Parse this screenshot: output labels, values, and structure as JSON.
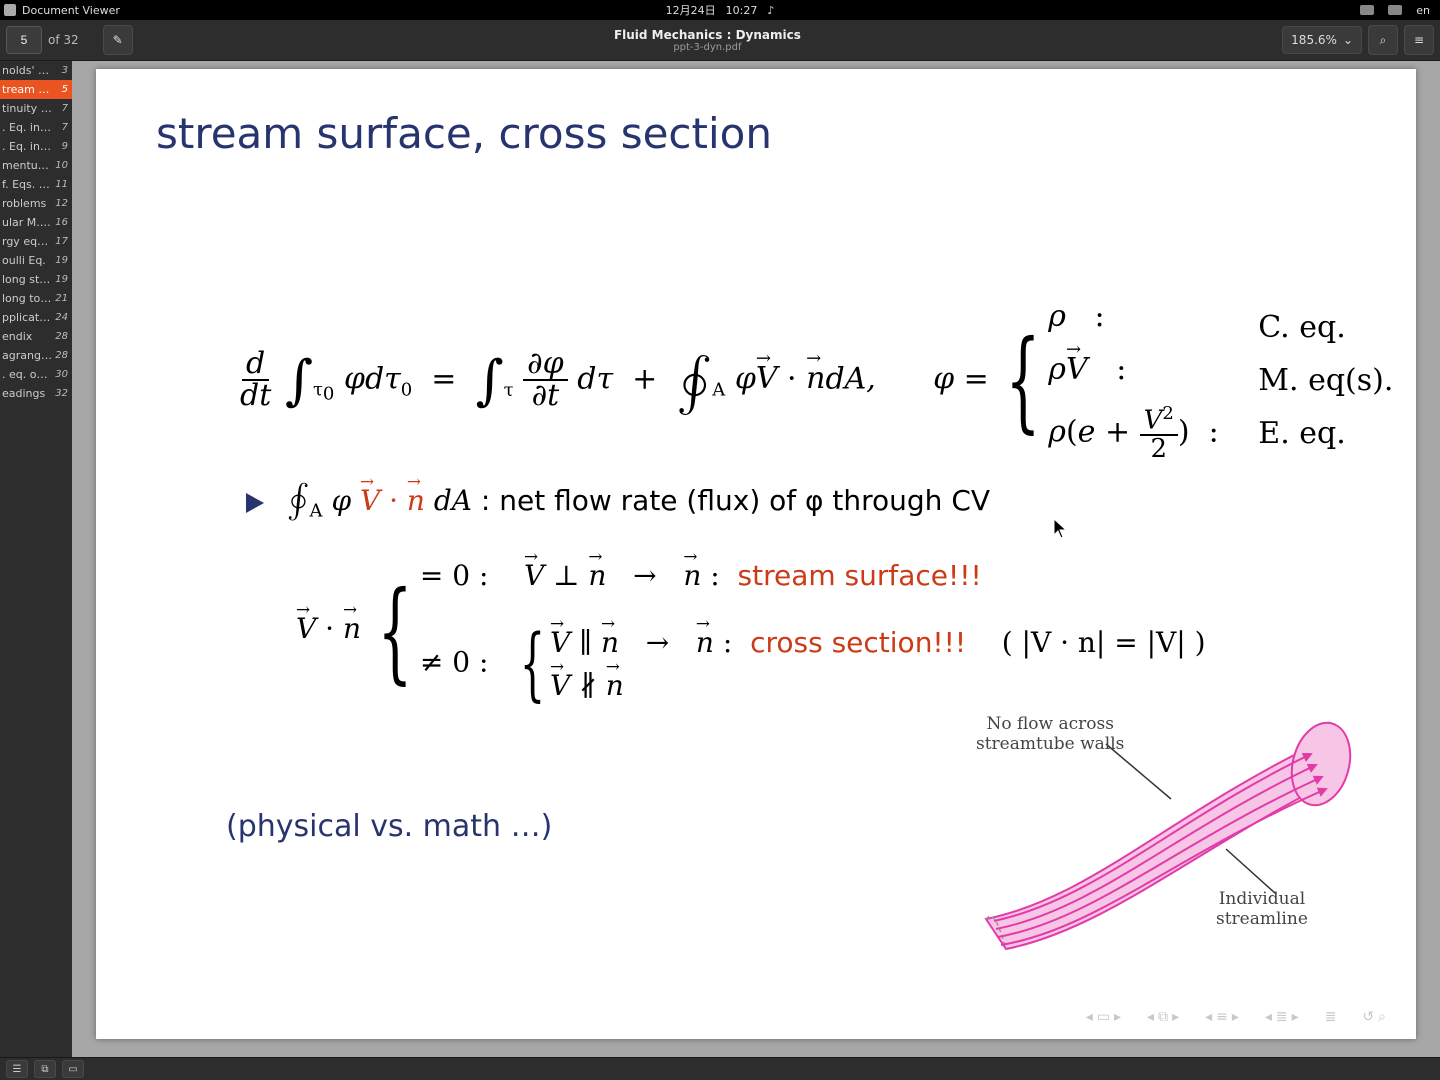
{
  "topbar": {
    "app_title": "Document Viewer",
    "date": "12月24日",
    "time": "10:27",
    "lang": "en"
  },
  "header": {
    "page_current": "5",
    "page_total": "of 32",
    "title_main": "Fluid Mechanics :     Dynamics",
    "title_sub": "ppt-3-dyn.pdf",
    "zoom": "185.6%"
  },
  "outline": [
    {
      "label": "nolds' tr…",
      "page": "3",
      "selected": false
    },
    {
      "label": "tream s…",
      "page": "5",
      "selected": true
    },
    {
      "label": "tinuity e…",
      "page": "7",
      "selected": false
    },
    {
      "label": ". Eq. in int.",
      "page": "7",
      "selected": false
    },
    {
      "label": ". Eq. in d…",
      "page": "9",
      "selected": false
    },
    {
      "label": "mentum …",
      "page": "10",
      "selected": false
    },
    {
      "label": "f. Eqs. o…",
      "page": "11",
      "selected": false
    },
    {
      "label": "roblems",
      "page": "12",
      "selected": false
    },
    {
      "label": "ular M. E…",
      "page": "16",
      "selected": false
    },
    {
      "label": "rgy equa…",
      "page": "17",
      "selected": false
    },
    {
      "label": "oulli Eq.",
      "page": "19",
      "selected": false
    },
    {
      "label": "long str…",
      "page": "19",
      "selected": false
    },
    {
      "label": "long tot…",
      "page": "21",
      "selected": false
    },
    {
      "label": "pplicati…",
      "page": "24",
      "selected": false
    },
    {
      "label": "endix",
      "page": "28",
      "selected": false
    },
    {
      "label": "agrangi…",
      "page": "28",
      "selected": false
    },
    {
      "label": ". eq. on CV",
      "page": "30",
      "selected": false
    },
    {
      "label": "eadings",
      "page": "32",
      "selected": false
    }
  ],
  "slide": {
    "title": "stream surface, cross section",
    "accent_color": "#28346e",
    "warn_color": "#cc3b17",
    "eq_main_parts": {
      "lhs_ddt": "d",
      "lhs_dt": "dt",
      "phi": "φ",
      "dtau0": "dτ",
      "sub0": "0",
      "eq": "=",
      "dpartial_num": "∂φ",
      "dpartial_den": "∂t",
      "dtau": "dτ",
      "plus": "+",
      "Vn": "V · n",
      "dA": "dA,",
      "phi_eq": "φ =",
      "case1_l": "ρ",
      "case1_r": "C. eq.",
      "case2_l": "ρV",
      "case2_r": "M. eq(s).",
      "case3_l": "ρ(e + V²⁄2)",
      "case3_r": "E. eq."
    },
    "bullet": {
      "flux_text": ": net flow rate (flux) of φ through CV",
      "Vn_label": "V · n",
      "zero": "= 0 :",
      "nonzero": "≠ 0 :",
      "Vperp": "V ⊥ n",
      "Vpara": "V ∥ n",
      "Vnpara": "V ∦ n",
      "arrow": "→",
      "n_colon": "n :",
      "stream": "stream surface!!!",
      "cross": "cross section!!!",
      "mag": "( |V · n| = |V| )"
    },
    "note": "(physical vs. math …)",
    "tube_label1": "No flow across\nstreamtube walls",
    "tube_label2": "Individual\nstreamline",
    "tube_color": "#e23ba8"
  },
  "icons": {
    "edit": "✎",
    "search": "⌕",
    "menu": "≡",
    "caret": "⌄",
    "side": "☰",
    "dual": "⧉",
    "present": "▭",
    "bell": "♪"
  }
}
